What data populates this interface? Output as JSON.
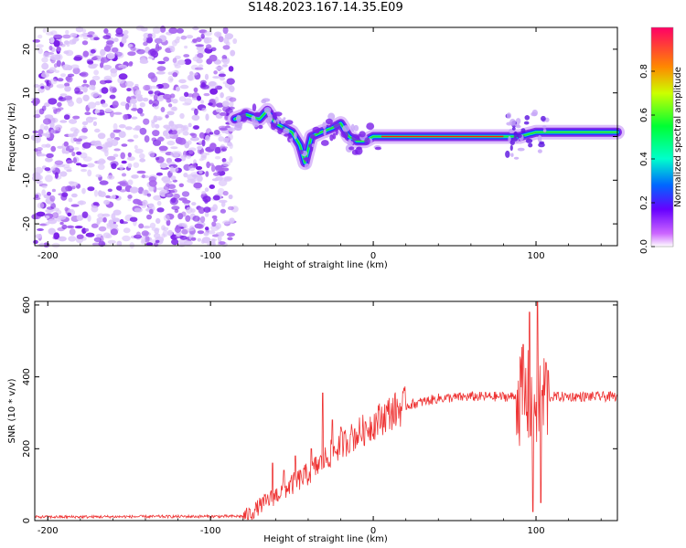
{
  "page": {
    "title": "S148.2023.167.14.35.E09"
  },
  "chart_data": [
    {
      "type": "heatmap",
      "name": "spectrogram",
      "xlabel": "Height of straight line (km)",
      "ylabel": "Frequency (Hz)",
      "xlim": [
        -208,
        150
      ],
      "ylim": [
        -25,
        25
      ],
      "xticks": [
        -200,
        -100,
        0,
        100
      ],
      "xtick_labels": [
        "-200",
        "-100",
        "0",
        "100"
      ],
      "yticks": [
        20,
        10,
        0,
        -10,
        -20
      ],
      "ytick_labels": [
        "20",
        "10",
        "0",
        "-10",
        "-20"
      ],
      "colorbar": {
        "label": "Normalized spectral amplitude",
        "range": [
          0,
          1
        ],
        "ticks": [
          0.0,
          0.2,
          0.4,
          0.6,
          0.8
        ],
        "tick_labels": [
          "0.0",
          "0.2",
          "0.4",
          "0.6",
          "0.8"
        ],
        "colormap": "gist_rainbow_r"
      },
      "features": {
        "noise_region_x": [
          -208,
          -85
        ],
        "ridge": [
          [
            -85,
            4
          ],
          [
            -78,
            5
          ],
          [
            -70,
            4
          ],
          [
            -65,
            6
          ],
          [
            -60,
            3
          ],
          [
            -55,
            2
          ],
          [
            -50,
            1
          ],
          [
            -45,
            -2
          ],
          [
            -42,
            -6
          ],
          [
            -38,
            0
          ],
          [
            -32,
            1
          ],
          [
            -25,
            2
          ],
          [
            -20,
            3
          ],
          [
            -15,
            0
          ],
          [
            -10,
            -1
          ],
          [
            -5,
            -1
          ],
          [
            0,
            0
          ],
          [
            10,
            0
          ],
          [
            40,
            0
          ],
          [
            80,
            0
          ],
          [
            90,
            0
          ],
          [
            100,
            1
          ],
          [
            150,
            1
          ]
        ]
      },
      "grid": false
    },
    {
      "type": "line",
      "name": "snr",
      "xlabel": "Height of straight line (km)",
      "ylabel": "SNR (10 * v/v)",
      "xlim": [
        -208,
        150
      ],
      "ylim": [
        0,
        610
      ],
      "xticks": [
        -200,
        -100,
        0,
        100
      ],
      "xtick_labels": [
        "-200",
        "-100",
        "0",
        "100"
      ],
      "yticks": [
        0,
        200,
        400,
        600
      ],
      "ytick_labels": [
        "0",
        "200",
        "400",
        "600"
      ],
      "color": "#ee3333",
      "trend": [
        [
          -208,
          10
        ],
        [
          -80,
          12
        ],
        [
          -75,
          20
        ],
        [
          -70,
          40
        ],
        [
          -60,
          70
        ],
        [
          -50,
          100
        ],
        [
          -40,
          130
        ],
        [
          -30,
          170
        ],
        [
          -20,
          210
        ],
        [
          -10,
          240
        ],
        [
          0,
          270
        ],
        [
          10,
          300
        ],
        [
          20,
          320
        ],
        [
          30,
          330
        ],
        [
          40,
          340
        ],
        [
          60,
          345
        ],
        [
          80,
          345
        ],
        [
          90,
          345
        ],
        [
          95,
          340
        ],
        [
          100,
          335
        ],
        [
          110,
          345
        ],
        [
          150,
          345
        ]
      ],
      "spikes": [
        [
          -62,
          160
        ],
        [
          -55,
          140
        ],
        [
          -48,
          180
        ],
        [
          -38,
          200
        ],
        [
          -31,
          355
        ],
        [
          -25,
          280
        ],
        [
          -20,
          260
        ],
        [
          -14,
          240
        ],
        [
          -5,
          275
        ],
        [
          92,
          490
        ],
        [
          96,
          580
        ],
        [
          98,
          25
        ],
        [
          101,
          610
        ],
        [
          103,
          50
        ],
        [
          106,
          440
        ]
      ],
      "grid": false
    }
  ]
}
